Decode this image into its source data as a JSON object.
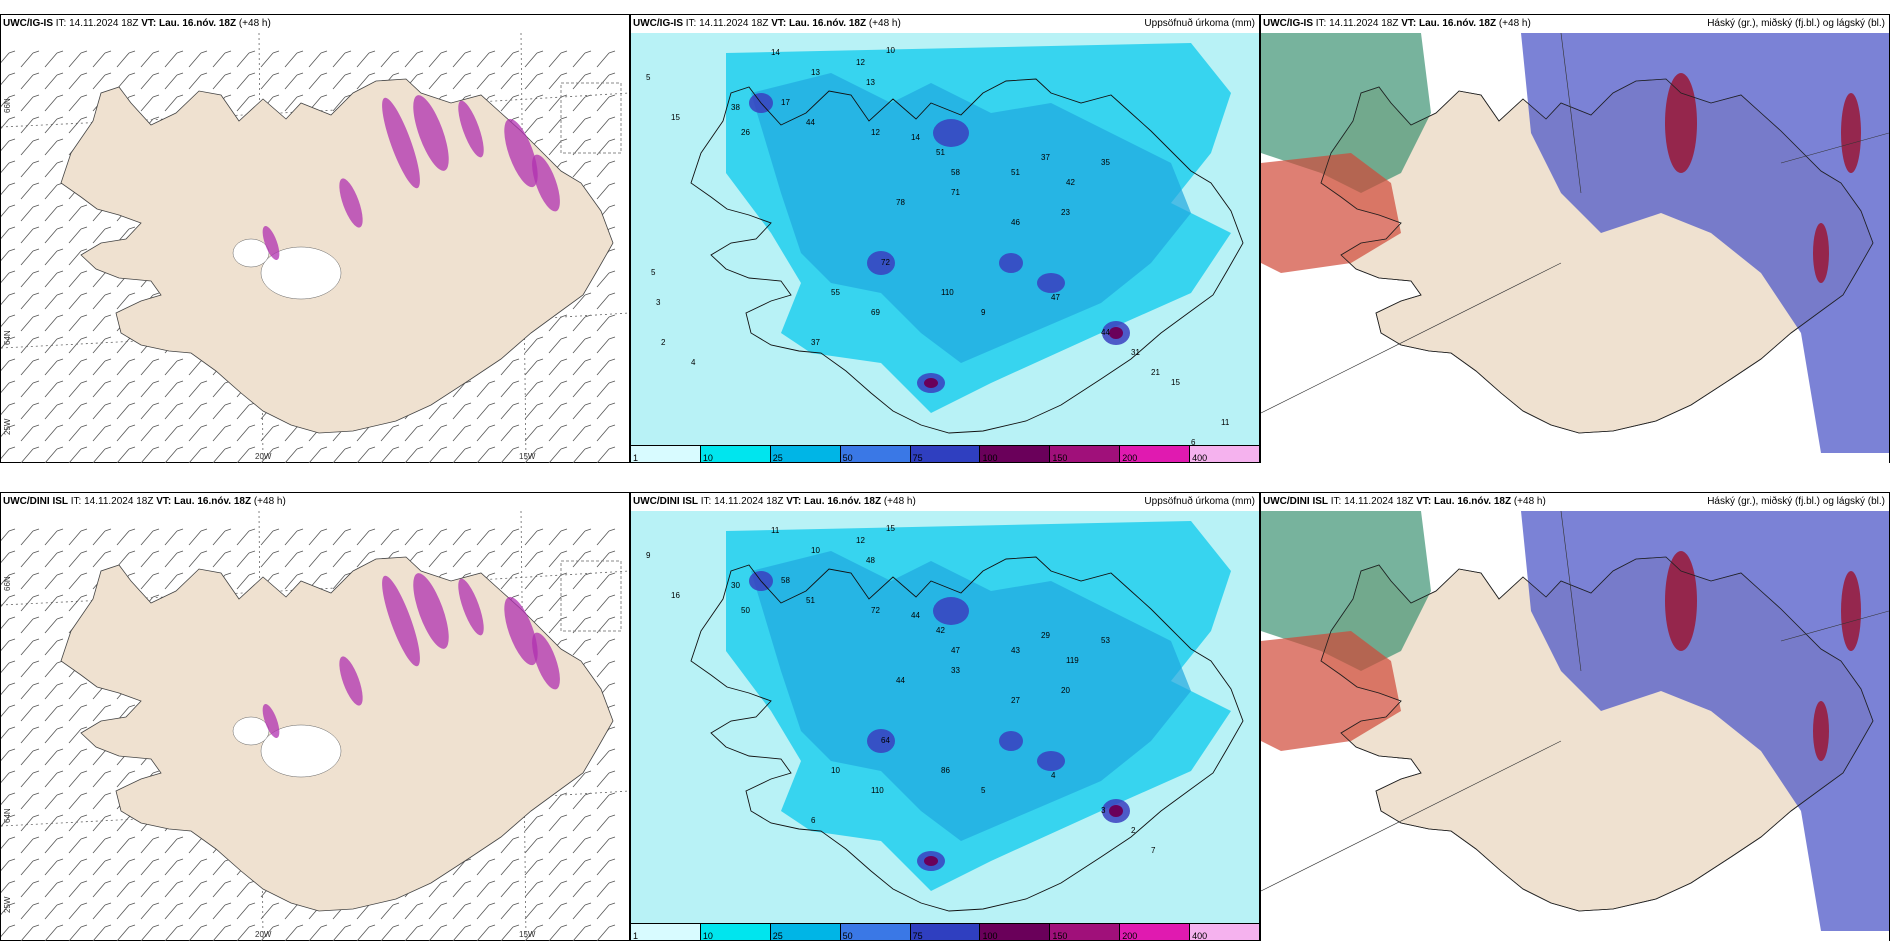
{
  "rows": [
    {
      "model": "UWC/IG-IS",
      "panels": [
        {
          "kind": "wind",
          "model": "UWC/IG-IS",
          "init": "IT: 14.11.2024 18Z",
          "vt_label": "VT:",
          "vt": "Lau. 16.nóv. 18Z",
          "lead": "(+48 h)",
          "title_right": ""
        },
        {
          "kind": "precip",
          "model": "UWC/IG-IS",
          "init": "IT: 14.11.2024 18Z",
          "vt_label": "VT:",
          "vt": "Lau. 16.nóv. 18Z",
          "lead": "(+48 h)",
          "title_right": "Uppsöfnuð úrkoma (mm)"
        },
        {
          "kind": "cloud",
          "model": "UWC/IG-IS",
          "init": "IT: 14.11.2024 18Z",
          "vt_label": "VT:",
          "vt": "Lau. 16.nóv. 18Z",
          "lead": "(+48 h)",
          "title_right": "Háský (gr.), miðský (fj.bl.) og lágský (bl.)"
        }
      ]
    },
    {
      "model": "UWC/DINI ISL",
      "panels": [
        {
          "kind": "wind",
          "model": "UWC/DINI ISL",
          "init": "IT: 14.11.2024 18Z",
          "vt_label": "VT:",
          "vt": "Lau. 16.nóv. 18Z",
          "lead": "(+48 h)",
          "title_right": ""
        },
        {
          "kind": "precip",
          "model": "UWC/DINI ISL",
          "init": "IT: 14.11.2024 18Z",
          "vt_label": "VT:",
          "vt": "Lau. 16.nóv. 18Z",
          "lead": "(+48 h)",
          "title_right": "Uppsöfnuð úrkoma (mm)"
        },
        {
          "kind": "cloud",
          "model": "UWC/DINI ISL",
          "init": "IT: 14.11.2024 18Z",
          "vt_label": "VT:",
          "vt": "Lau. 16.nóv. 18Z",
          "lead": "(+48 h)",
          "title_right": "Háský (gr.), miðský (fj.bl.) og lágský (bl.)"
        }
      ]
    }
  ],
  "grid_labels": {
    "lat_top": "66N",
    "lat_mid": "64N",
    "lat_bottom": "25W",
    "lon_left": "20W",
    "lon_right": "15W"
  },
  "precip_scale": {
    "ticks": [
      "1",
      "10",
      "25",
      "50",
      "75",
      "100",
      "150",
      "200",
      "400"
    ],
    "colors": [
      "#d8fbff",
      "#00e5ee",
      "#00b5e6",
      "#3a78e6",
      "#2f3fc0",
      "#6a005a",
      "#a0107a",
      "#e01ab0",
      "#f5b2ee"
    ]
  },
  "colors": {
    "land": "#efe1d0",
    "sea_low": "#b8f2f6",
    "precip_mid": "#29d0ee",
    "high_cloud": "#2e8a68",
    "mid_cloud": "#4f58c8",
    "low_cloud": "#9a1836",
    "snow": "#b030b0"
  },
  "precip_values_top": [
    "14",
    "13",
    "12",
    "10",
    "5",
    "15",
    "38",
    "26",
    "44",
    "17",
    "13",
    "12",
    "14",
    "51",
    "58",
    "51",
    "37",
    "42",
    "35",
    "23",
    "46",
    "71",
    "78",
    "72",
    "110",
    "69",
    "55",
    "37",
    "9",
    "47",
    "44",
    "31",
    "21",
    "15",
    "11",
    "6",
    "5",
    "3",
    "2",
    "4"
  ],
  "precip_values_bottom": [
    "11",
    "10",
    "12",
    "15",
    "9",
    "16",
    "30",
    "50",
    "51",
    "58",
    "48",
    "72",
    "44",
    "42",
    "47",
    "43",
    "29",
    "119",
    "53",
    "20",
    "27",
    "33",
    "44",
    "64",
    "86",
    "110",
    "10",
    "6",
    "5",
    "4",
    "3",
    "2",
    "7"
  ]
}
